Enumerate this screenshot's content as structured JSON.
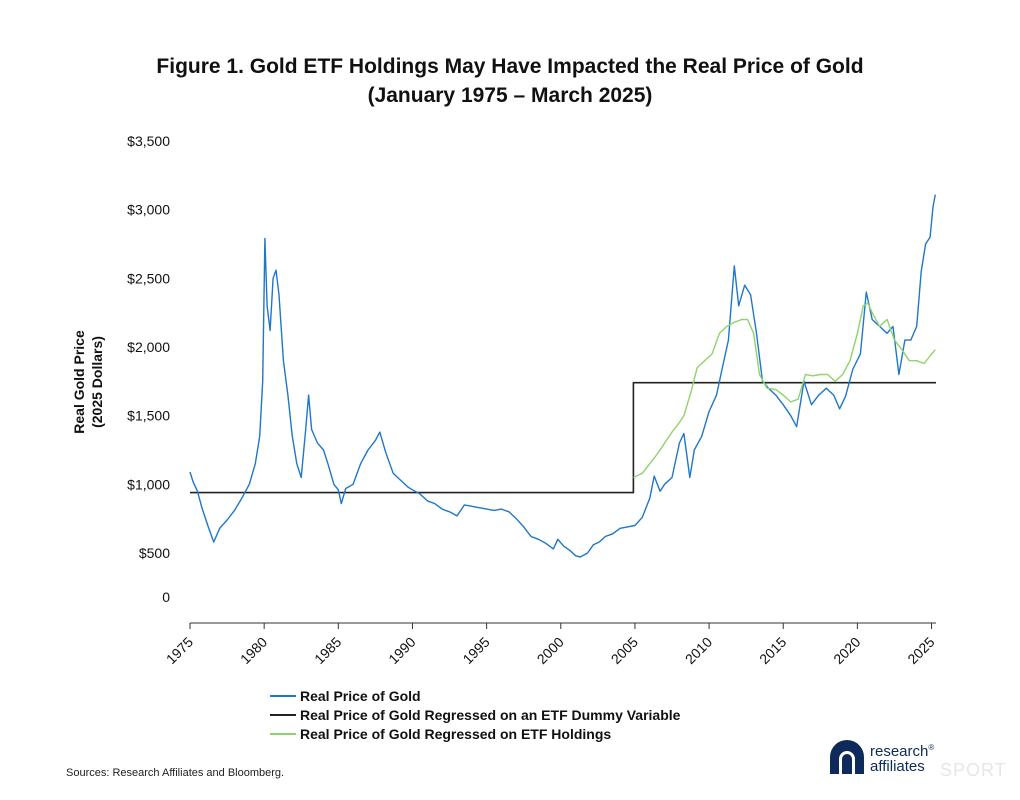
{
  "title": {
    "line1": "Figure 1. Gold ETF Holdings May Have Impacted the Real Price of Gold",
    "line2": "(January 1975 – March 2025)"
  },
  "sources": "Sources: Research Affiliates and Bloomberg.",
  "logo": {
    "line1": "research",
    "mark": "®",
    "line2": "affiliates"
  },
  "watermark": "SPORT",
  "colors": {
    "blue": "#1f77c8",
    "black": "#222222",
    "green": "#8fd36a"
  },
  "chart_data": {
    "type": "line",
    "ylabel": [
      "Real Gold Price",
      "(2025 Dollars)"
    ],
    "xlim": [
      1975,
      2025.3
    ],
    "ylim": [
      0,
      3500
    ],
    "y_ticks": [
      {
        "value": 0,
        "label": "0"
      },
      {
        "value": 500,
        "label": "$500"
      },
      {
        "value": 1000,
        "label": "$1,000"
      },
      {
        "value": 1500,
        "label": "$1,500"
      },
      {
        "value": 2000,
        "label": "$2,000"
      },
      {
        "value": 2500,
        "label": "$2,500"
      },
      {
        "value": 3000,
        "label": "$3,000"
      },
      {
        "value": 3500,
        "label": "$3,500"
      }
    ],
    "x_ticks": [
      "1975",
      "1980",
      "1985",
      "1990",
      "1995",
      "2000",
      "2005",
      "2010",
      "2015",
      "2020",
      "2025"
    ],
    "grid": false,
    "legend_position": "bottom",
    "series": [
      {
        "name": "Real Price of Gold",
        "color": "#1f77c8",
        "points": [
          [
            1975.0,
            1090
          ],
          [
            1975.2,
            1020
          ],
          [
            1975.5,
            950
          ],
          [
            1975.8,
            830
          ],
          [
            1976.2,
            700
          ],
          [
            1976.6,
            580
          ],
          [
            1977.0,
            680
          ],
          [
            1977.5,
            740
          ],
          [
            1978.0,
            810
          ],
          [
            1978.5,
            900
          ],
          [
            1979.0,
            1000
          ],
          [
            1979.4,
            1150
          ],
          [
            1979.7,
            1350
          ],
          [
            1979.9,
            1750
          ],
          [
            1980.05,
            2790
          ],
          [
            1980.2,
            2300
          ],
          [
            1980.4,
            2120
          ],
          [
            1980.6,
            2500
          ],
          [
            1980.8,
            2560
          ],
          [
            1981.0,
            2380
          ],
          [
            1981.3,
            1900
          ],
          [
            1981.6,
            1650
          ],
          [
            1981.9,
            1350
          ],
          [
            1982.2,
            1150
          ],
          [
            1982.5,
            1050
          ],
          [
            1982.8,
            1400
          ],
          [
            1983.0,
            1650
          ],
          [
            1983.2,
            1400
          ],
          [
            1983.6,
            1300
          ],
          [
            1984.0,
            1250
          ],
          [
            1984.3,
            1150
          ],
          [
            1984.7,
            1000
          ],
          [
            1985.0,
            960
          ],
          [
            1985.2,
            860
          ],
          [
            1985.5,
            970
          ],
          [
            1986.0,
            1000
          ],
          [
            1986.5,
            1150
          ],
          [
            1987.0,
            1250
          ],
          [
            1987.5,
            1320
          ],
          [
            1987.8,
            1380
          ],
          [
            1988.2,
            1230
          ],
          [
            1988.7,
            1080
          ],
          [
            1989.2,
            1030
          ],
          [
            1989.7,
            980
          ],
          [
            1990.0,
            960
          ],
          [
            1990.5,
            930
          ],
          [
            1991.0,
            880
          ],
          [
            1991.5,
            860
          ],
          [
            1992.0,
            820
          ],
          [
            1992.5,
            800
          ],
          [
            1993.0,
            770
          ],
          [
            1993.5,
            850
          ],
          [
            1994.0,
            840
          ],
          [
            1994.5,
            830
          ],
          [
            1995.0,
            820
          ],
          [
            1995.5,
            810
          ],
          [
            1996.0,
            820
          ],
          [
            1996.5,
            800
          ],
          [
            1997.0,
            750
          ],
          [
            1997.5,
            690
          ],
          [
            1998.0,
            620
          ],
          [
            1998.5,
            600
          ],
          [
            1999.0,
            570
          ],
          [
            1999.5,
            530
          ],
          [
            1999.8,
            600
          ],
          [
            2000.2,
            550
          ],
          [
            2000.6,
            520
          ],
          [
            2001.0,
            480
          ],
          [
            2001.3,
            470
          ],
          [
            2001.8,
            500
          ],
          [
            2002.2,
            560
          ],
          [
            2002.6,
            580
          ],
          [
            2003.0,
            620
          ],
          [
            2003.5,
            640
          ],
          [
            2004.0,
            680
          ],
          [
            2004.5,
            690
          ],
          [
            2005.0,
            700
          ],
          [
            2005.5,
            760
          ],
          [
            2006.0,
            900
          ],
          [
            2006.3,
            1060
          ],
          [
            2006.7,
            950
          ],
          [
            2007.0,
            1000
          ],
          [
            2007.5,
            1050
          ],
          [
            2008.0,
            1300
          ],
          [
            2008.3,
            1370
          ],
          [
            2008.7,
            1050
          ],
          [
            2009.0,
            1250
          ],
          [
            2009.5,
            1350
          ],
          [
            2010.0,
            1530
          ],
          [
            2010.5,
            1650
          ],
          [
            2010.9,
            1850
          ],
          [
            2011.3,
            2050
          ],
          [
            2011.7,
            2590
          ],
          [
            2012.0,
            2300
          ],
          [
            2012.4,
            2450
          ],
          [
            2012.8,
            2380
          ],
          [
            2013.2,
            2100
          ],
          [
            2013.6,
            1750
          ],
          [
            2014.0,
            1700
          ],
          [
            2014.5,
            1650
          ],
          [
            2015.0,
            1580
          ],
          [
            2015.5,
            1500
          ],
          [
            2015.9,
            1420
          ],
          [
            2016.4,
            1750
          ],
          [
            2016.9,
            1580
          ],
          [
            2017.4,
            1650
          ],
          [
            2017.9,
            1700
          ],
          [
            2018.4,
            1650
          ],
          [
            2018.8,
            1550
          ],
          [
            2019.2,
            1640
          ],
          [
            2019.7,
            1840
          ],
          [
            2020.2,
            1950
          ],
          [
            2020.6,
            2400
          ],
          [
            2021.0,
            2200
          ],
          [
            2021.5,
            2150
          ],
          [
            2022.0,
            2100
          ],
          [
            2022.4,
            2150
          ],
          [
            2022.8,
            1800
          ],
          [
            2023.2,
            2050
          ],
          [
            2023.6,
            2050
          ],
          [
            2024.0,
            2150
          ],
          [
            2024.3,
            2550
          ],
          [
            2024.6,
            2750
          ],
          [
            2024.9,
            2800
          ],
          [
            2025.1,
            3020
          ],
          [
            2025.25,
            3110
          ]
        ]
      },
      {
        "name": "Real Price of Gold Regressed on an ETF Dummy Variable",
        "color": "#222222",
        "points": [
          [
            1975.0,
            940
          ],
          [
            2004.9,
            940
          ],
          [
            2004.9,
            1740
          ],
          [
            2025.3,
            1740
          ]
        ]
      },
      {
        "name": "Real Price of Gold Regressed on ETF Holdings",
        "color": "#8fd36a",
        "points": [
          [
            2004.9,
            1050
          ],
          [
            2005.5,
            1080
          ],
          [
            2006.0,
            1150
          ],
          [
            2006.5,
            1220
          ],
          [
            2007.0,
            1300
          ],
          [
            2007.5,
            1380
          ],
          [
            2008.0,
            1450
          ],
          [
            2008.3,
            1500
          ],
          [
            2008.8,
            1680
          ],
          [
            2009.2,
            1850
          ],
          [
            2009.7,
            1900
          ],
          [
            2010.2,
            1950
          ],
          [
            2010.7,
            2100
          ],
          [
            2011.2,
            2150
          ],
          [
            2011.7,
            2180
          ],
          [
            2012.2,
            2200
          ],
          [
            2012.6,
            2200
          ],
          [
            2013.0,
            2100
          ],
          [
            2013.4,
            1800
          ],
          [
            2013.9,
            1700
          ],
          [
            2014.5,
            1690
          ],
          [
            2015.0,
            1650
          ],
          [
            2015.5,
            1600
          ],
          [
            2016.0,
            1620
          ],
          [
            2016.5,
            1800
          ],
          [
            2017.0,
            1790
          ],
          [
            2017.5,
            1800
          ],
          [
            2018.0,
            1800
          ],
          [
            2018.5,
            1750
          ],
          [
            2019.0,
            1800
          ],
          [
            2019.5,
            1900
          ],
          [
            2020.0,
            2100
          ],
          [
            2020.4,
            2300
          ],
          [
            2020.7,
            2320
          ],
          [
            2021.0,
            2250
          ],
          [
            2021.5,
            2150
          ],
          [
            2022.0,
            2200
          ],
          [
            2022.5,
            2050
          ],
          [
            2023.0,
            1980
          ],
          [
            2023.5,
            1900
          ],
          [
            2024.0,
            1900
          ],
          [
            2024.5,
            1880
          ],
          [
            2025.0,
            1950
          ],
          [
            2025.25,
            1980
          ]
        ]
      }
    ]
  }
}
